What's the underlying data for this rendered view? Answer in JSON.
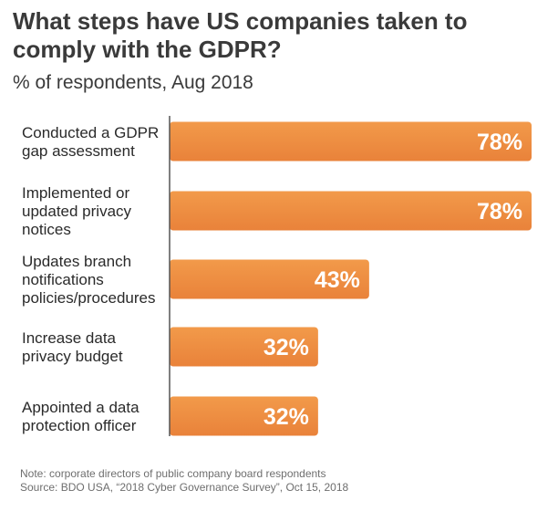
{
  "title": "What steps have US companies taken to comply with the GDPR?",
  "subtitle": "% of respondents, Aug 2018",
  "note": "Note: corporate directors of public company board respondents",
  "source": "Source: BDO USA, “2018 Cyber Governance Survey”, Oct 15, 2018",
  "colors": {
    "bar_top": "#f29a4a",
    "bar_bottom": "#e9823a",
    "axis": "#555555",
    "label": "#2a2a2a",
    "value": "#ffffff"
  },
  "chart_data": {
    "type": "bar",
    "orientation": "horizontal",
    "categories": [
      [
        "Conducted a GDPR",
        "gap assessment"
      ],
      [
        "Implemented or",
        "updated privacy",
        "notices"
      ],
      [
        "Updates branch",
        "notifications",
        "policies/procedures"
      ],
      [
        "Increase data",
        "privacy budget"
      ],
      [
        "Appointed a data",
        "protection officer"
      ]
    ],
    "values": [
      78,
      78,
      43,
      32,
      32
    ],
    "value_labels": [
      "78%",
      "78%",
      "43%",
      "32%",
      "32%"
    ],
    "xlim": [
      0,
      100
    ],
    "grid": false,
    "legend": "none"
  }
}
